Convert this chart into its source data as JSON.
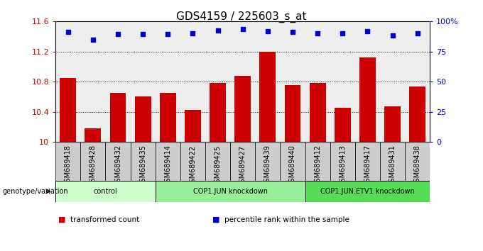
{
  "title": "GDS4159 / 225603_s_at",
  "samples": [
    "GSM689418",
    "GSM689428",
    "GSM689432",
    "GSM689435",
    "GSM689414",
    "GSM689422",
    "GSM689425",
    "GSM689427",
    "GSM689439",
    "GSM689440",
    "GSM689412",
    "GSM689413",
    "GSM689417",
    "GSM689431",
    "GSM689438"
  ],
  "bar_values": [
    10.85,
    10.18,
    10.65,
    10.6,
    10.65,
    10.42,
    10.78,
    10.88,
    11.2,
    10.75,
    10.78,
    10.45,
    11.12,
    10.47,
    10.73
  ],
  "percentile_values": [
    11.46,
    11.36,
    11.43,
    11.43,
    11.43,
    11.44,
    11.48,
    11.5,
    11.47,
    11.46,
    11.44,
    11.44,
    11.47,
    11.41,
    11.44
  ],
  "bar_color": "#cc0000",
  "dot_color": "#0000cc",
  "ylim": [
    10.0,
    11.6
  ],
  "yticks": [
    10.0,
    10.4,
    10.8,
    11.2,
    11.6
  ],
  "ytick_labels": [
    "10",
    "10.4",
    "10.8",
    "11.2",
    "11.6"
  ],
  "right_yticks": [
    0,
    25,
    50,
    75,
    100
  ],
  "right_ytick_labels": [
    "0",
    "25",
    "50",
    "75",
    "100%"
  ],
  "groups": [
    {
      "label": "control",
      "start": 0,
      "end": 3,
      "color": "#ccffcc"
    },
    {
      "label": "COP1.JUN knockdown",
      "start": 4,
      "end": 9,
      "color": "#99ee99"
    },
    {
      "label": "COP1.JUN.ETV1 knockdown",
      "start": 10,
      "end": 14,
      "color": "#55dd55"
    }
  ],
  "xlabel_left": "genotype/variation",
  "legend_items": [
    {
      "color": "#cc0000",
      "label": "transformed count"
    },
    {
      "color": "#0000cc",
      "label": "percentile rank within the sample"
    }
  ],
  "background_color": "#ffffff",
  "plot_bg_color": "#eeeeee",
  "title_fontsize": 11,
  "tick_fontsize": 8,
  "label_fontsize": 7,
  "bar_width": 0.65
}
